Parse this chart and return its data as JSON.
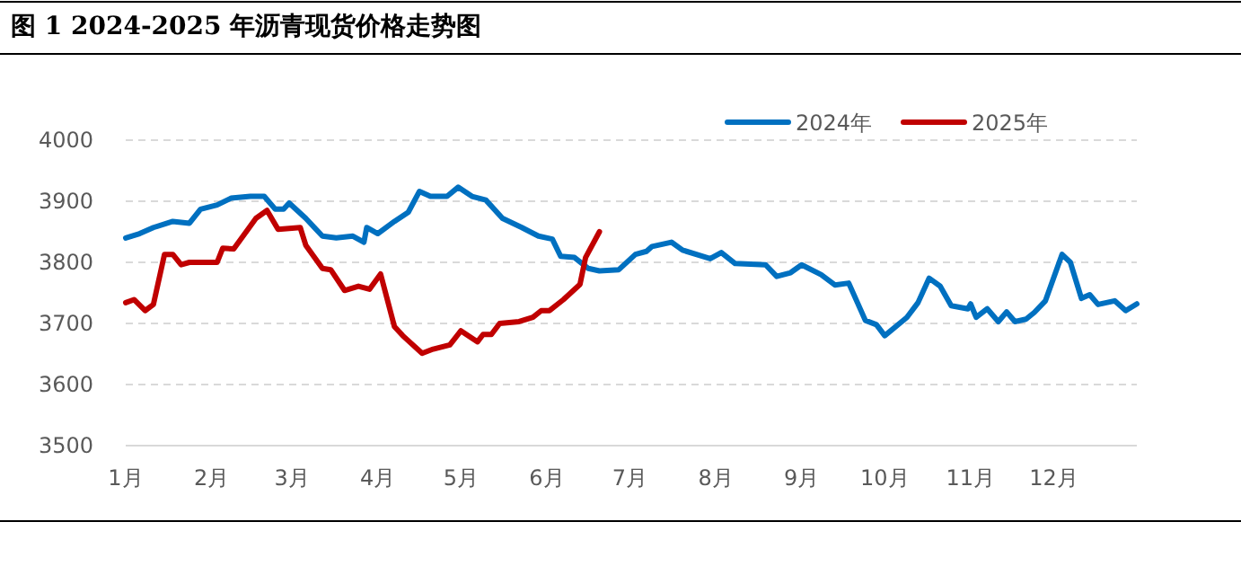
{
  "chart_data": {
    "type": "line",
    "title": "图 1 2024-2025 年沥青现货价格走势图",
    "xlim": [
      "--01-01",
      "--12-31"
    ],
    "xticks": [
      {
        "value": "--01-01",
        "label": "1月"
      },
      {
        "value": "--02-01",
        "label": "2月"
      },
      {
        "value": "--03-01",
        "label": "3月"
      },
      {
        "value": "--04-01",
        "label": "4月"
      },
      {
        "value": "--05-01",
        "label": "5月"
      },
      {
        "value": "--06-01",
        "label": "6月"
      },
      {
        "value": "--07-01",
        "label": "7月"
      },
      {
        "value": "--08-01",
        "label": "8月"
      },
      {
        "value": "--09-01",
        "label": "9月"
      },
      {
        "value": "--10-01",
        "label": "10月"
      },
      {
        "value": "--11-01",
        "label": "11月"
      },
      {
        "value": "--12-01",
        "label": "12月"
      }
    ],
    "ylim": [
      3500,
      4000
    ],
    "yticks": [
      3500,
      3600,
      3700,
      3800,
      3900,
      4000
    ],
    "grid": "y",
    "legend": "top right",
    "line_style": "solid",
    "marker": "none",
    "series": [
      {
        "name": "2024年",
        "color": "#0070c0",
        "x": [
          "--01-01",
          "--01-06",
          "--01-11",
          "--01-18",
          "--01-24",
          "--01-28",
          "--02-03",
          "--02-08",
          "--02-15",
          "--02-20",
          "--02-24",
          "--02-27",
          "--02-29",
          "--03-06",
          "--03-12",
          "--03-17",
          "--03-23",
          "--03-27",
          "--03-28",
          "--04-01",
          "--04-07",
          "--04-12",
          "--04-16",
          "--04-20",
          "--04-26",
          "--04-30",
          "--05-05",
          "--05-10",
          "--05-16",
          "--05-23",
          "--05-29",
          "--06-03",
          "--06-06",
          "--06-11",
          "--06-16",
          "--06-20",
          "--06-27",
          "--07-03",
          "--07-07",
          "--07-09",
          "--07-16",
          "--07-20",
          "--07-30",
          "--08-03",
          "--08-08",
          "--08-19",
          "--08-23",
          "--08-28",
          "--09-01",
          "--09-08",
          "--09-13",
          "--09-18",
          "--09-24",
          "--09-28",
          "--10-01",
          "--10-09",
          "--10-13",
          "--10-17",
          "--10-21",
          "--10-25",
          "--10-31",
          "--11-01",
          "--11-03",
          "--11-07",
          "--11-11",
          "--11-14",
          "--11-17",
          "--11-21",
          "--11-24",
          "--11-28",
          "--12-04",
          "--12-07",
          "--12-11",
          "--12-14",
          "--12-17",
          "--12-23",
          "--12-27",
          "--12-31"
        ],
        "values": [
          3840,
          3847,
          3857,
          3867,
          3864,
          3887,
          3894,
          3905,
          3908,
          3908,
          3887,
          3887,
          3897,
          3872,
          3843,
          3840,
          3843,
          3833,
          3857,
          3847,
          3867,
          3882,
          3916,
          3908,
          3908,
          3923,
          3908,
          3902,
          3872,
          3857,
          3843,
          3838,
          3810,
          3808,
          3790,
          3786,
          3788,
          3813,
          3818,
          3826,
          3833,
          3820,
          3806,
          3816,
          3798,
          3796,
          3777,
          3783,
          3796,
          3780,
          3763,
          3766,
          3705,
          3698,
          3680,
          3710,
          3734,
          3774,
          3761,
          3729,
          3724,
          3732,
          3710,
          3724,
          3703,
          3719,
          3703,
          3707,
          3718,
          3737,
          3813,
          3800,
          3741,
          3747,
          3731,
          3737,
          3721,
          3732
        ]
      },
      {
        "name": "2025年",
        "color": "#c00000",
        "x": [
          "--01-01",
          "--01-04",
          "--01-08",
          "--01-11",
          "--01-15",
          "--01-18",
          "--01-21",
          "--01-24",
          "--02-03",
          "--02-05",
          "--02-09",
          "--02-17",
          "--02-21",
          "--02-25",
          "--03-04",
          "--03-06",
          "--03-12",
          "--03-15",
          "--03-20",
          "--03-25",
          "--03-29",
          "--04-02",
          "--04-07",
          "--04-10",
          "--04-17",
          "--04-21",
          "--04-27",
          "--05-01",
          "--05-07",
          "--05-09",
          "--05-12",
          "--05-15",
          "--05-22",
          "--05-27",
          "--05-30",
          "--06-02",
          "--06-07",
          "--06-13",
          "--06-15",
          "--06-20"
        ],
        "values": [
          3734,
          3739,
          3721,
          3731,
          3813,
          3813,
          3796,
          3800,
          3800,
          3823,
          3822,
          3872,
          3885,
          3854,
          3857,
          3828,
          3790,
          3788,
          3754,
          3761,
          3756,
          3781,
          3695,
          3680,
          3651,
          3658,
          3665,
          3688,
          3670,
          3682,
          3682,
          3700,
          3703,
          3710,
          3721,
          3721,
          3739,
          3764,
          3808,
          3850
        ]
      }
    ]
  }
}
